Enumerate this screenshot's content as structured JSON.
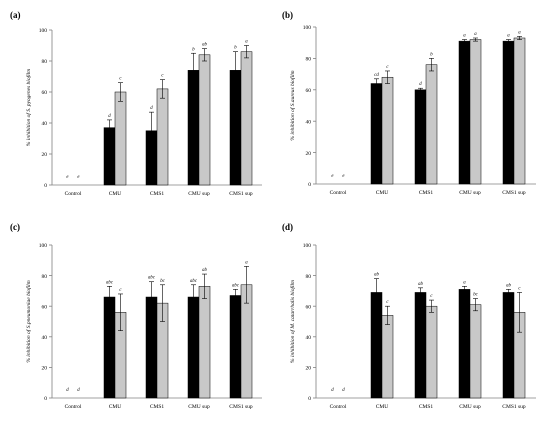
{
  "colors": {
    "series_a": "#000000",
    "series_b": "#c8c8c8",
    "axis": "#808080",
    "text": "#000000"
  },
  "chart_data": [
    {
      "panel": "(a)",
      "type": "bar",
      "ylabel": "% inhibition of S. pyogenes biofilm",
      "ylim": [
        0,
        100
      ],
      "yticks": [
        0,
        20,
        40,
        60,
        80,
        100
      ],
      "categories": [
        "Control",
        "CMU",
        "CMS1",
        "CMU sup",
        "CMS1 sup"
      ],
      "series": [
        {
          "values": [
            0,
            37,
            35,
            74,
            74
          ],
          "errors": [
            0,
            5,
            12,
            11,
            12
          ],
          "letters": [
            "e",
            "d",
            "d",
            "b",
            "b"
          ]
        },
        {
          "values": [
            0,
            60,
            62,
            84,
            86
          ],
          "errors": [
            0,
            6,
            6,
            4,
            4
          ],
          "letters": [
            "e",
            "c",
            "c",
            "ab",
            "a"
          ]
        }
      ]
    },
    {
      "panel": "(b)",
      "type": "bar",
      "ylabel": "% inhibition of S.aureus biofilm",
      "ylim": [
        0,
        100
      ],
      "yticks": [
        0,
        20,
        40,
        60,
        80,
        100
      ],
      "categories": [
        "Control",
        "CMU",
        "CMS1",
        "CMU sup",
        "CMS1 sup"
      ],
      "series": [
        {
          "values": [
            0,
            64,
            60,
            91,
            91
          ],
          "errors": [
            0,
            3,
            1,
            1,
            1
          ],
          "letters": [
            "e",
            "cd",
            "d",
            "a",
            "a"
          ]
        },
        {
          "values": [
            0,
            68,
            76,
            92,
            93
          ],
          "errors": [
            0,
            4,
            4,
            1,
            1
          ],
          "letters": [
            "e",
            "c",
            "b",
            "a",
            "a"
          ]
        }
      ]
    },
    {
      "panel": "(c)",
      "type": "bar",
      "ylabel": "% inhibition of S.pneumoniae biofilm",
      "ylim": [
        0,
        100
      ],
      "yticks": [
        0,
        20,
        40,
        60,
        80,
        100
      ],
      "categories": [
        "Control",
        "CMU",
        "CMS1",
        "CMU sup",
        "CMS1 sup"
      ],
      "series": [
        {
          "values": [
            0,
            66,
            66,
            66,
            67
          ],
          "errors": [
            0,
            7,
            10,
            8,
            4
          ],
          "letters": [
            "d",
            "abc",
            "abc",
            "abc",
            "abc"
          ]
        },
        {
          "values": [
            0,
            56,
            62,
            73,
            74
          ],
          "errors": [
            0,
            12,
            12,
            8,
            12
          ],
          "letters": [
            "d",
            "c",
            "bc",
            "ab",
            "a"
          ]
        }
      ]
    },
    {
      "panel": "(d)",
      "type": "bar",
      "ylabel": "% inhibition of M. catarrhalis biofilm",
      "ylim": [
        0,
        100
      ],
      "yticks": [
        0,
        20,
        40,
        60,
        80,
        100
      ],
      "categories": [
        "Control",
        "CMU",
        "CMS1",
        "CMU sup",
        "CMS1 sup"
      ],
      "series": [
        {
          "values": [
            0,
            69,
            69,
            71,
            69
          ],
          "errors": [
            0,
            9,
            3,
            2,
            2
          ],
          "letters": [
            "d",
            "ab",
            "ab",
            "a",
            "ab"
          ]
        },
        {
          "values": [
            0,
            54,
            60,
            61,
            56
          ],
          "errors": [
            0,
            6,
            4,
            4,
            13
          ],
          "letters": [
            "d",
            "c",
            "c",
            "bc",
            "c"
          ]
        }
      ]
    }
  ]
}
